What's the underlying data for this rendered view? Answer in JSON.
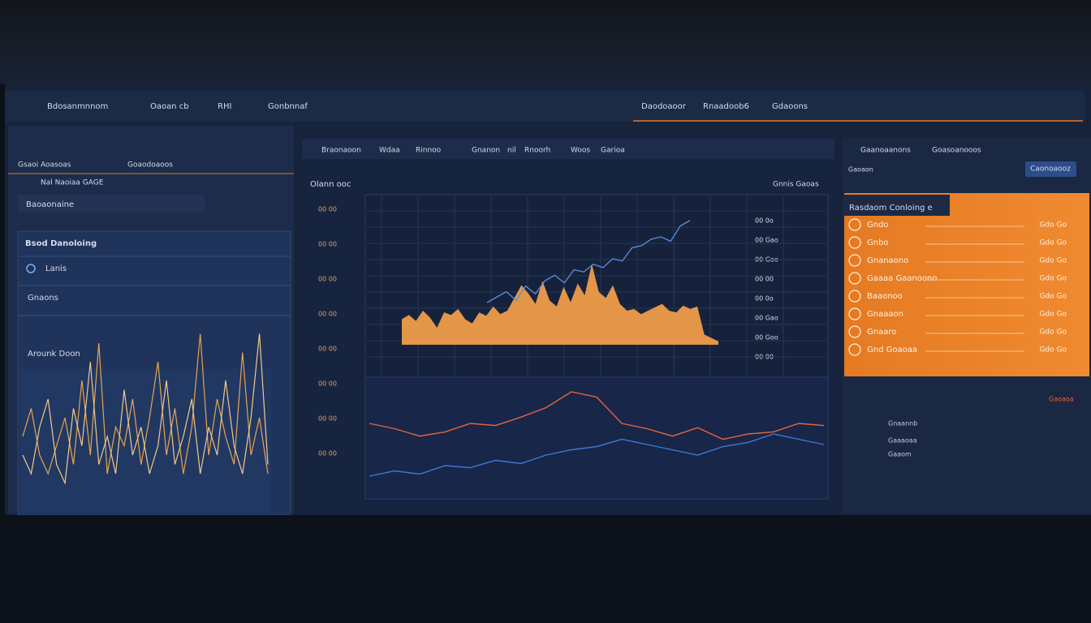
{
  "topbar": {
    "left_items": [
      "Bdosanmnnom",
      "Oaoan cb",
      "RHI",
      "Gonbnnaf"
    ],
    "right_items": [
      "Daodoaoor",
      "Rnaadoob6",
      "Gdaoons"
    ]
  },
  "left_panel": {
    "tabs": [
      "Gsaoi",
      "Aoasoas",
      "Goaodoaoos"
    ],
    "subtitle": "Nal Naoiaa GAGE",
    "card_title": "Baoaonaine",
    "section_title": "Bsod Danoloing",
    "items": [
      "Lanis",
      "Gnaons",
      "Arounk Doon"
    ],
    "chart": {
      "series": [
        {
          "color": "#e8a450",
          "values": [
            40,
            55,
            30,
            20,
            35,
            50,
            25,
            70,
            30,
            90,
            20,
            45,
            35,
            60,
            25,
            50,
            80,
            30,
            55,
            20,
            45,
            95,
            30,
            60,
            40,
            25,
            85,
            30,
            50,
            20
          ]
        },
        {
          "color": "#f3c98a",
          "values": [
            30,
            20,
            45,
            60,
            25,
            15,
            55,
            35,
            80,
            25,
            40,
            20,
            65,
            30,
            45,
            20,
            35,
            70,
            25,
            40,
            60,
            20,
            45,
            30,
            70,
            35,
            20,
            50,
            95,
            25
          ]
        }
      ]
    }
  },
  "center_panel": {
    "tabs": [
      "Braonaoon",
      "Wdaa",
      "Rinnoo",
      "Gnanon",
      "nil",
      "Rnoorh",
      "Woos",
      "Garioa"
    ],
    "title": "Olann ooc",
    "legend": "Gnnis Gaoas",
    "y_labels": [
      "00 00",
      "00 00",
      "00 00",
      "00 00",
      "00 00",
      "00 00",
      "00 00",
      "00 00"
    ],
    "right_labels": [
      "00 0o",
      "00 Gao",
      "00 Goo",
      "00 00",
      "00 0o",
      "00 Gao",
      "00 Goo",
      "00 00"
    ],
    "area_chart": {
      "color": "#f5a04a",
      "values": [
        30,
        35,
        28,
        40,
        32,
        20,
        38,
        35,
        42,
        30,
        25,
        38,
        34,
        45,
        36,
        40,
        55,
        70,
        60,
        48,
        75,
        52,
        45,
        68,
        50,
        72,
        58,
        95,
        62,
        55,
        70,
        48,
        40,
        42,
        36,
        40,
        44,
        48,
        40,
        38,
        46,
        42,
        45,
        12,
        8,
        4
      ]
    },
    "trend_line": {
      "color": "#5b8fe0",
      "values": [
        20,
        25,
        30,
        22,
        35,
        28,
        40,
        45,
        38,
        50,
        48,
        55,
        52,
        60,
        58,
        70,
        72,
        78,
        80,
        76,
        90,
        95
      ]
    },
    "lower_chart": {
      "series": [
        {
          "color": "#e8653a",
          "values": [
            60,
            55,
            48,
            52,
            60,
            58,
            66,
            75,
            90,
            85,
            60,
            55,
            48,
            56,
            45,
            50,
            52,
            60,
            58
          ]
        },
        {
          "color": "#3d7ad6",
          "values": [
            10,
            15,
            12,
            20,
            18,
            25,
            22,
            30,
            35,
            38,
            45,
            40,
            35,
            30,
            38,
            42,
            50,
            45,
            40
          ]
        }
      ]
    }
  },
  "right_panel": {
    "tabs": [
      "Gaanoaanons",
      "Goasoanooos"
    ],
    "badge": "Gaoaon",
    "button": "Caonoaooz",
    "card_title": "Rasdaom Conloing e",
    "rows": [
      {
        "label": "Gndo",
        "value": "Gdo Go"
      },
      {
        "label": "Gnbo",
        "value": "Gdo Go"
      },
      {
        "label": "Gnanaono",
        "value": "Gdo Go"
      },
      {
        "label": "Gaaaa Gaanoono",
        "value": "Gdo Go"
      },
      {
        "label": "Baaonoo",
        "value": "Gdo Go"
      },
      {
        "label": "Gnaaaon",
        "value": "Gdo Go"
      },
      {
        "label": "Gnaaro",
        "value": "Gdo Go"
      },
      {
        "label": "Gnd Goaoaa",
        "value": "Gdo Go"
      }
    ],
    "lower_rows": [
      "Gaoaoa",
      "Gnaannb",
      "Gaaaoaa",
      "Gaaom"
    ]
  }
}
